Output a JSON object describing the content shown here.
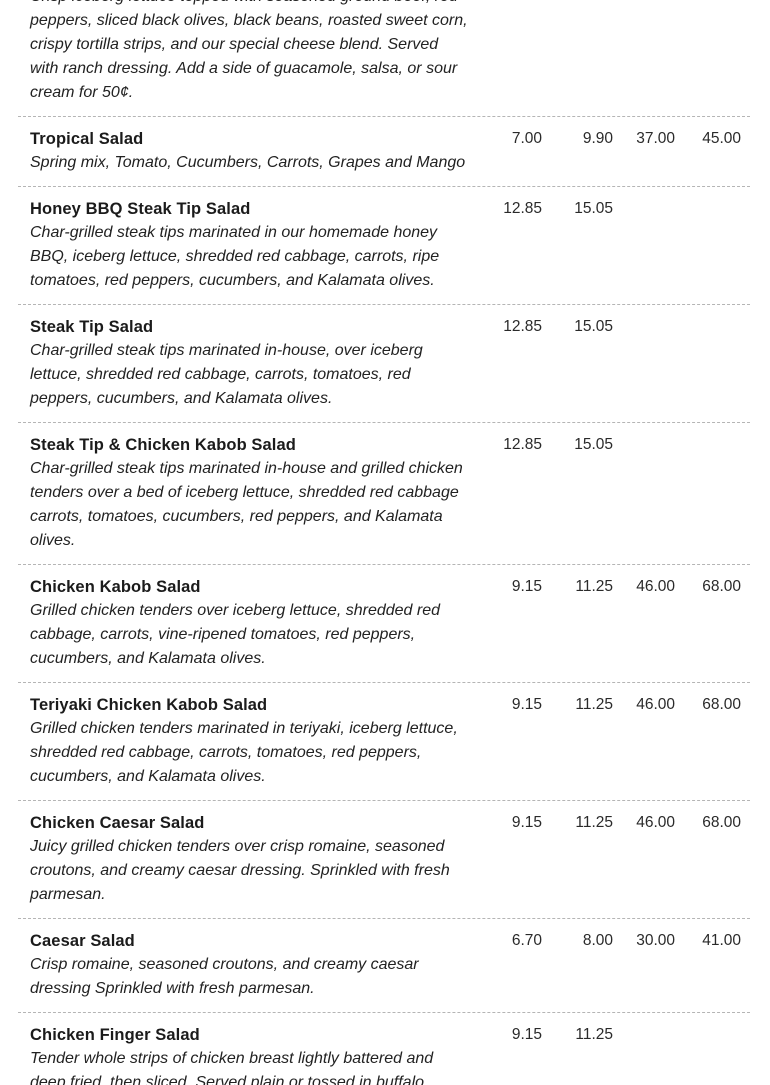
{
  "page": {
    "background_color": "#ffffff",
    "separator_color": "#b5b5b5",
    "text_color": "#1b1b1b"
  },
  "menu": {
    "items": [
      {
        "name": "",
        "description": "Crisp iceberg lettuce topped with seasoned ground beef, red\npeppers, sliced black olives, black beans, roasted sweet corn,\ncrispy tortilla strips, and our special cheese blend. Served\nwith ranch dressing. Add a side of guacamole, salsa, or sour\ncream for 50¢.",
        "prices": [
          "",
          "",
          "",
          ""
        ]
      },
      {
        "name": "Tropical Salad",
        "description": "Spring mix, Tomato, Cucumbers, Carrots, Grapes and Mango",
        "prices": [
          "7.00",
          "9.90",
          "37.00",
          "45.00"
        ]
      },
      {
        "name": "Honey BBQ Steak Tip Salad",
        "description": "Char-grilled steak tips marinated in our homemade honey\nBBQ, iceberg lettuce, shredded red cabbage, carrots, ripe\ntomatoes, red peppers, cucumbers, and Kalamata olives.",
        "prices": [
          "12.85",
          "15.05",
          "",
          ""
        ]
      },
      {
        "name": "Steak Tip Salad",
        "description": "Char-grilled steak tips marinated in-house, over iceberg\nlettuce, shredded red cabbage, carrots, tomatoes, red\npeppers, cucumbers, and Kalamata olives.",
        "prices": [
          "12.85",
          "15.05",
          "",
          ""
        ]
      },
      {
        "name": "Steak Tip & Chicken Kabob Salad",
        "description": "Char-grilled steak tips marinated in-house and grilled chicken\ntenders over a bed of iceberg lettuce, shredded red cabbage\ncarrots, tomatoes, cucumbers, red peppers, and Kalamata\nolives.",
        "prices": [
          "12.85",
          "15.05",
          "",
          ""
        ]
      },
      {
        "name": "Chicken Kabob Salad",
        "description": "Grilled chicken tenders over iceberg lettuce, shredded red\ncabbage, carrots, vine-ripened tomatoes, red peppers,\ncucumbers, and Kalamata olives.",
        "prices": [
          "9.15",
          "11.25",
          "46.00",
          "68.00"
        ]
      },
      {
        "name": "Teriyaki Chicken Kabob Salad",
        "description": "Grilled chicken tenders marinated in teriyaki, iceberg lettuce,\nshredded red cabbage, carrots, tomatoes, red peppers,\ncucumbers, and Kalamata olives.",
        "prices": [
          "9.15",
          "11.25",
          "46.00",
          "68.00"
        ]
      },
      {
        "name": "Chicken Caesar Salad",
        "description": "Juicy grilled chicken tenders over crisp romaine, seasoned\ncroutons, and creamy caesar dressing. Sprinkled with fresh\nparmesan.",
        "prices": [
          "9.15",
          "11.25",
          "46.00",
          "68.00"
        ]
      },
      {
        "name": "Caesar Salad",
        "description": "Crisp romaine, seasoned croutons, and creamy caesar\ndressing Sprinkled with fresh parmesan.",
        "prices": [
          "6.70",
          "8.00",
          "30.00",
          "41.00"
        ]
      },
      {
        "name": "Chicken Finger Salad",
        "description": "Tender whole strips of chicken breast lightly battered and\ndeep fried, then sliced. Served plain or tossed in buffalo",
        "prices": [
          "9.15",
          "11.25",
          "",
          ""
        ]
      }
    ]
  }
}
